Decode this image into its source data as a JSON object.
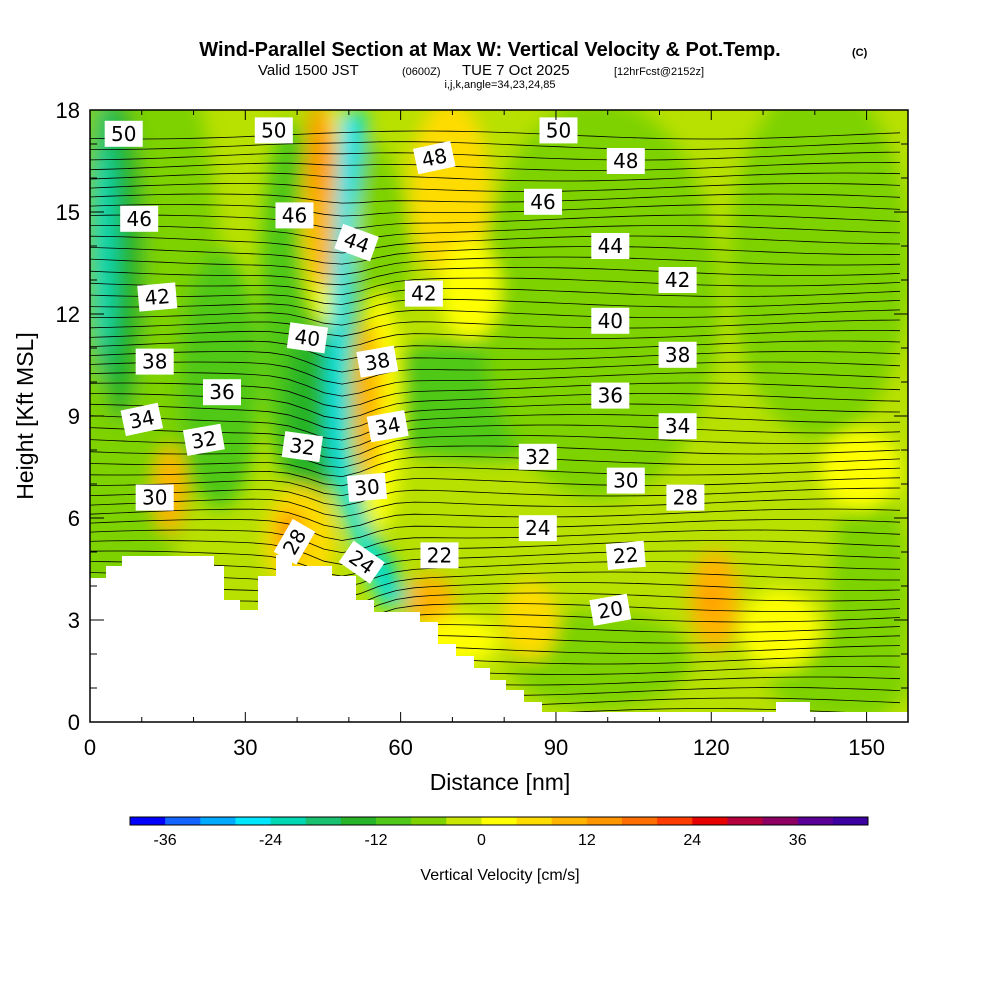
{
  "chart_data": {
    "type": "heatmap",
    "title": "Wind-Parallel Section at Max W: Vertical Velocity & Pot.Temp.",
    "title_mark": "(C)",
    "subtitle_main": "Valid 1500 JST",
    "subtitle_utc": "(0600Z)",
    "subtitle_date": "TUE 7 Oct 2025",
    "subtitle_fcst": "[12hrFcst@2152z]",
    "subtitle_ijk": "i,j,k,angle=34,23,24,85",
    "xlabel": "Distance [nm]",
    "ylabel": "Height [Kft MSL]",
    "xlim": [
      0,
      158
    ],
    "ylim": [
      0,
      18
    ],
    "xticks": [
      "0",
      "30",
      "60",
      "90",
      "120",
      "150"
    ],
    "xtick_values": [
      0,
      30,
      60,
      90,
      120,
      150
    ],
    "yticks": [
      "0",
      "3",
      "6",
      "9",
      "12",
      "15",
      "18"
    ],
    "ytick_values": [
      0,
      3,
      6,
      9,
      12,
      15,
      18
    ],
    "colorbar": {
      "label": "Vertical Velocity [cm/s]",
      "min": -40,
      "max": 44,
      "step": 4,
      "tick_labels": [
        "-36",
        "-24",
        "-12",
        "0",
        "12",
        "24",
        "36"
      ],
      "tick_values": [
        -36,
        -24,
        -12,
        0,
        12,
        24,
        36
      ],
      "colors": [
        "#0000ff",
        "#1464ff",
        "#00aaff",
        "#00e6ff",
        "#00d8b4",
        "#18c070",
        "#28b428",
        "#50c818",
        "#7dd200",
        "#c8e600",
        "#ffff00",
        "#ffdc00",
        "#ffb400",
        "#ff9600",
        "#ff6e00",
        "#ff3c00",
        "#e60000",
        "#b4003c",
        "#8c0064",
        "#5a0096",
        "#3c00a0"
      ]
    },
    "theta_contour_labels": [
      {
        "text": "50",
        "x": 6.5,
        "y": 17.3,
        "rot": 0
      },
      {
        "text": "50",
        "x": 35.5,
        "y": 17.4,
        "rot": 0
      },
      {
        "text": "50",
        "x": 90.5,
        "y": 17.4,
        "rot": 0
      },
      {
        "text": "48",
        "x": 66.5,
        "y": 16.6,
        "rot": -12
      },
      {
        "text": "48",
        "x": 103.5,
        "y": 16.5,
        "rot": 0
      },
      {
        "text": "46",
        "x": 9.5,
        "y": 14.8,
        "rot": 0
      },
      {
        "text": "46",
        "x": 39.5,
        "y": 14.9,
        "rot": 0
      },
      {
        "text": "46",
        "x": 87.5,
        "y": 15.3,
        "rot": 0
      },
      {
        "text": "44",
        "x": 51.5,
        "y": 14.1,
        "rot": 20
      },
      {
        "text": "44",
        "x": 100.5,
        "y": 14.0,
        "rot": 0
      },
      {
        "text": "42",
        "x": 13,
        "y": 12.5,
        "rot": -5
      },
      {
        "text": "42",
        "x": 64.5,
        "y": 12.6,
        "rot": 0
      },
      {
        "text": "42",
        "x": 113.5,
        "y": 13.0,
        "rot": 0
      },
      {
        "text": "40",
        "x": 42,
        "y": 11.3,
        "rot": 8
      },
      {
        "text": "40",
        "x": 100.5,
        "y": 11.8,
        "rot": 0
      },
      {
        "text": "38",
        "x": 12.5,
        "y": 10.6,
        "rot": 0
      },
      {
        "text": "38",
        "x": 55.5,
        "y": 10.6,
        "rot": -10
      },
      {
        "text": "38",
        "x": 113.5,
        "y": 10.8,
        "rot": 0
      },
      {
        "text": "36",
        "x": 25.5,
        "y": 9.7,
        "rot": 0
      },
      {
        "text": "36",
        "x": 100.5,
        "y": 9.6,
        "rot": 0
      },
      {
        "text": "34",
        "x": 10,
        "y": 8.9,
        "rot": -12
      },
      {
        "text": "34",
        "x": 57.5,
        "y": 8.7,
        "rot": -10
      },
      {
        "text": "34",
        "x": 113.5,
        "y": 8.7,
        "rot": 0
      },
      {
        "text": "32",
        "x": 22,
        "y": 8.3,
        "rot": -10
      },
      {
        "text": "32",
        "x": 41,
        "y": 8.1,
        "rot": 8
      },
      {
        "text": "32",
        "x": 86.5,
        "y": 7.8,
        "rot": 0
      },
      {
        "text": "30",
        "x": 12.5,
        "y": 6.6,
        "rot": 0
      },
      {
        "text": "30",
        "x": 53.5,
        "y": 6.9,
        "rot": -5
      },
      {
        "text": "30",
        "x": 103.5,
        "y": 7.1,
        "rot": 0
      },
      {
        "text": "28",
        "x": 39.5,
        "y": 5.3,
        "rot": -60
      },
      {
        "text": "28",
        "x": 115,
        "y": 6.6,
        "rot": 0
      },
      {
        "text": "24",
        "x": 52.5,
        "y": 4.7,
        "rot": 35
      },
      {
        "text": "24",
        "x": 86.5,
        "y": 5.7,
        "rot": 0
      },
      {
        "text": "22",
        "x": 67.5,
        "y": 4.9,
        "rot": 0
      },
      {
        "text": "22",
        "x": 103.5,
        "y": 4.9,
        "rot": -5
      },
      {
        "text": "20",
        "x": 100.5,
        "y": 3.3,
        "rot": -10
      }
    ]
  }
}
